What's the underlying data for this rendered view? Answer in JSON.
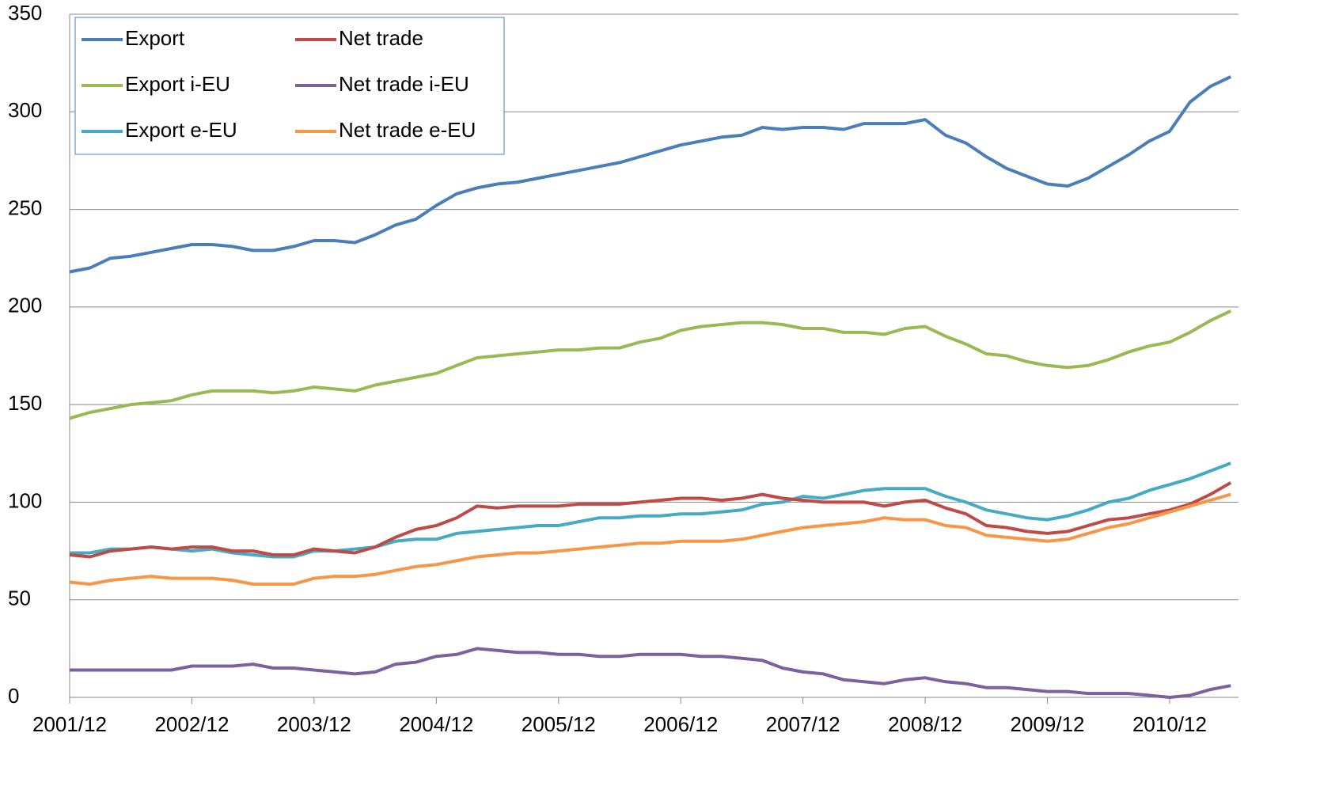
{
  "chart_data": {
    "type": "line",
    "categories": [
      "2001/12",
      null,
      null,
      null,
      null,
      null,
      "2002/12",
      null,
      null,
      null,
      null,
      null,
      "2003/12",
      null,
      null,
      null,
      null,
      null,
      "2004/12",
      null,
      null,
      null,
      null,
      null,
      "2005/12",
      null,
      null,
      null,
      null,
      null,
      "2006/12",
      null,
      null,
      null,
      null,
      null,
      "2007/12",
      null,
      null,
      null,
      null,
      null,
      "2008/12",
      null,
      null,
      null,
      null,
      null,
      "2009/12",
      null,
      null,
      null,
      null,
      null,
      "2010/12",
      null,
      null,
      null
    ],
    "series": [
      {
        "name": "Export",
        "color": "#4a7ebb",
        "values": [
          218,
          220,
          225,
          226,
          228,
          230,
          232,
          232,
          231,
          229,
          229,
          231,
          234,
          234,
          233,
          237,
          242,
          245,
          252,
          258,
          261,
          263,
          264,
          266,
          268,
          270,
          272,
          274,
          277,
          280,
          283,
          285,
          287,
          288,
          292,
          291,
          292,
          292,
          291,
          294,
          294,
          294,
          296,
          288,
          284,
          277,
          271,
          267,
          263,
          262,
          266,
          272,
          278,
          285,
          290,
          305,
          313,
          318
        ]
      },
      {
        "name": "Export i-EU",
        "color": "#98b954",
        "values": [
          143,
          146,
          148,
          150,
          151,
          152,
          155,
          157,
          157,
          157,
          156,
          157,
          159,
          158,
          157,
          160,
          162,
          164,
          166,
          170,
          174,
          175,
          176,
          177,
          178,
          178,
          179,
          179,
          182,
          184,
          188,
          190,
          191,
          192,
          192,
          191,
          189,
          189,
          187,
          187,
          186,
          189,
          190,
          185,
          181,
          176,
          175,
          172,
          170,
          169,
          170,
          173,
          177,
          180,
          182,
          187,
          193,
          198
        ]
      },
      {
        "name": "Export e-EU",
        "color": "#46aac5",
        "values": [
          74,
          74,
          76,
          76,
          77,
          76,
          75,
          76,
          74,
          73,
          72,
          72,
          75,
          75,
          76,
          77,
          80,
          81,
          81,
          84,
          85,
          86,
          87,
          88,
          88,
          90,
          92,
          92,
          93,
          93,
          94,
          94,
          95,
          96,
          99,
          100,
          103,
          102,
          104,
          106,
          107,
          107,
          107,
          103,
          100,
          96,
          94,
          92,
          91,
          93,
          96,
          100,
          102,
          106,
          109,
          112,
          116,
          120
        ]
      },
      {
        "name": "Net trade",
        "color": "#be4b48",
        "values": [
          73,
          72,
          75,
          76,
          77,
          76,
          77,
          77,
          75,
          75,
          73,
          73,
          76,
          75,
          74,
          77,
          82,
          86,
          88,
          92,
          98,
          97,
          98,
          98,
          98,
          99,
          99,
          99,
          100,
          101,
          102,
          102,
          101,
          102,
          104,
          102,
          101,
          100,
          100,
          100,
          98,
          100,
          101,
          97,
          94,
          88,
          87,
          85,
          84,
          85,
          88,
          91,
          92,
          94,
          96,
          99,
          104,
          110
        ]
      },
      {
        "name": "Net trade i-EU",
        "color": "#7d60a0",
        "values": [
          14,
          14,
          14,
          14,
          14,
          14,
          16,
          16,
          16,
          17,
          15,
          15,
          14,
          13,
          12,
          13,
          17,
          18,
          21,
          22,
          25,
          24,
          23,
          23,
          22,
          22,
          21,
          21,
          22,
          22,
          22,
          21,
          21,
          20,
          19,
          15,
          13,
          12,
          9,
          8,
          7,
          9,
          10,
          8,
          7,
          5,
          5,
          4,
          3,
          3,
          2,
          2,
          2,
          1,
          0,
          1,
          4,
          6
        ]
      },
      {
        "name": "Net trade e-EU",
        "color": "#f79646",
        "values": [
          59,
          58,
          60,
          61,
          62,
          61,
          61,
          61,
          60,
          58,
          58,
          58,
          61,
          62,
          62,
          63,
          65,
          67,
          68,
          70,
          72,
          73,
          74,
          74,
          75,
          76,
          77,
          78,
          79,
          79,
          80,
          80,
          80,
          81,
          83,
          85,
          87,
          88,
          89,
          90,
          92,
          91,
          91,
          88,
          87,
          83,
          82,
          81,
          80,
          81,
          84,
          87,
          89,
          92,
          95,
          98,
          101,
          104
        ]
      }
    ],
    "ylim": [
      0,
      350
    ],
    "yticks": [
      0,
      50,
      100,
      150,
      200,
      250,
      300,
      350
    ],
    "grid": true,
    "legend": "upper left"
  }
}
